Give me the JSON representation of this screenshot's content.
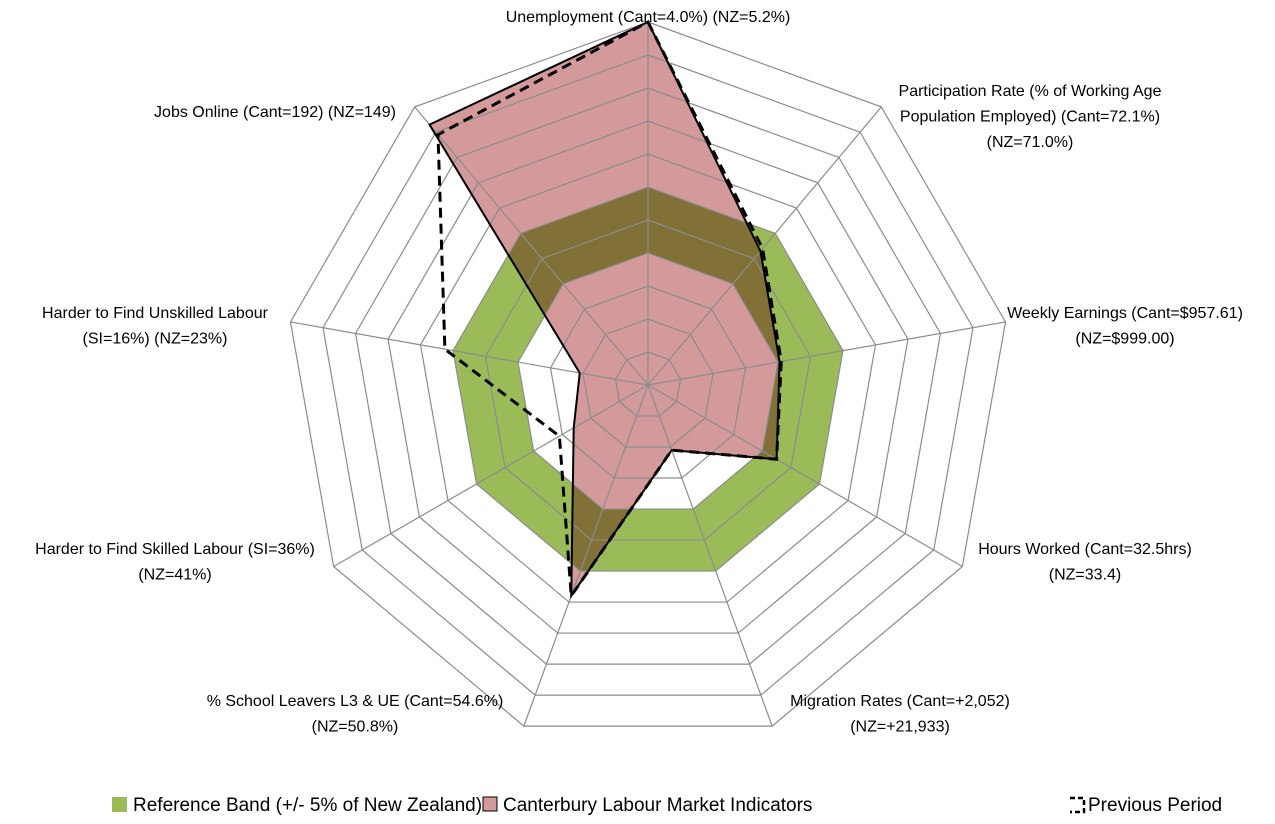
{
  "chart_data": {
    "type": "radar",
    "categories": [
      [
        "Unemployment (Cant=4.0%) (NZ=5.2%)"
      ],
      [
        "Participation Rate (% of Working Age",
        "Population Employed) (Cant=72.1%)",
        "(NZ=71.0%)"
      ],
      [
        "Weekly Earnings (Cant=$957.61)",
        "(NZ=$999.00)"
      ],
      [
        "Hours Worked (Cant=32.5hrs)",
        "(NZ=33.4)"
      ],
      [
        "Migration Rates (Cant=+2,052)",
        "(NZ=+21,933)"
      ],
      [
        "% School Leavers L3 & UE (Cant=54.6%)",
        "(NZ=50.8%)"
      ],
      [
        "Harder to Find Skilled Labour (SI=36%)",
        "(NZ=41%)"
      ],
      [
        "Harder to Find Unskilled Labour",
        "(SI=16%) (NZ=23%)"
      ],
      [
        "Jobs Online (Cant=192) (NZ=149)"
      ]
    ],
    "rlim": [
      0,
      11
    ],
    "rticks": [
      1,
      2,
      3,
      4,
      5,
      6,
      7,
      8,
      9,
      10,
      11
    ],
    "band": {
      "name": "Reference Band (+/- 5% of New Zealand)",
      "color": "#9bbb59",
      "lower": [
        4,
        4,
        4,
        4,
        4,
        4,
        4,
        4,
        4
      ],
      "upper": [
        6,
        6,
        6,
        6,
        6,
        6,
        6,
        6,
        6
      ]
    },
    "series": [
      {
        "name": "Canterbury Labour Market Indicators",
        "color": "#d49a9b",
        "values": [
          11,
          5.3,
          4.05,
          4.5,
          2.1,
          6.8,
          2.6,
          2.1,
          10.3
        ]
      },
      {
        "name": "Previous Period",
        "color": "#000000",
        "dashed": true,
        "values": [
          11,
          5.4,
          4.1,
          4.5,
          2.1,
          6.8,
          3.1,
          6.25,
          9.9
        ]
      }
    ]
  }
}
